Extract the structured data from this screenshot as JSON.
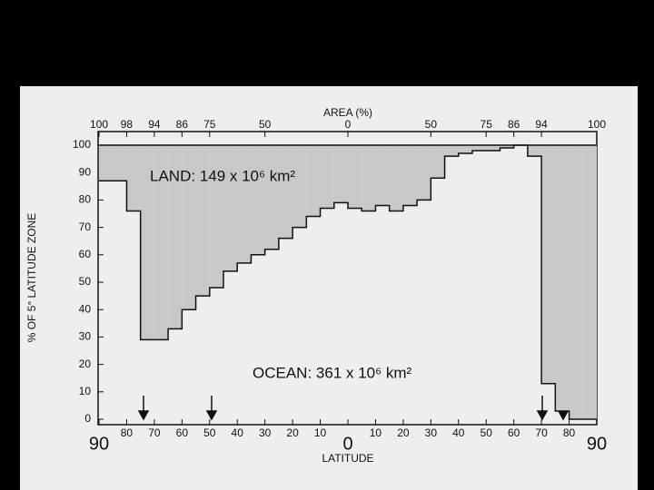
{
  "chart_data": {
    "type": "histogram",
    "title_top_axis": "AREA (%)",
    "xlabel": "LATITUDE",
    "ylabel": "% OF 5° LATITUDE ZONE",
    "annotations": [
      "LAND: 149 x 10⁶ km²",
      "OCEAN: 361 x 10⁶ km²"
    ],
    "bins": [
      90,
      85,
      80,
      75,
      70,
      65,
      60,
      55,
      50,
      45,
      40,
      35,
      30,
      25,
      20,
      15,
      10,
      5,
      0,
      -5,
      -10,
      -15,
      -20,
      -25,
      -30,
      -35,
      -40,
      -45,
      -50,
      -55,
      -60,
      -65,
      -70,
      -75,
      -80,
      -85,
      -90
    ],
    "values": [
      87,
      87,
      76,
      29,
      29,
      33,
      40,
      45,
      48,
      54,
      57,
      60,
      62,
      66,
      70,
      74,
      77,
      79,
      77,
      76,
      78,
      76,
      78,
      80,
      88,
      96,
      97,
      98,
      98,
      99,
      100,
      96,
      13,
      3,
      0,
      0
    ],
    "color": "#c8c8c8",
    "xlim": [
      90,
      -90
    ],
    "ylim": [
      0,
      100
    ],
    "yticks": [
      0,
      10,
      20,
      30,
      40,
      50,
      60,
      70,
      80,
      90,
      100
    ],
    "xticks": [
      90,
      80,
      70,
      60,
      50,
      40,
      30,
      20,
      10,
      0,
      {
        "value": -10,
        "label": "10"
      },
      {
        "value": -20,
        "label": "20"
      },
      {
        "value": -30,
        "label": "30"
      },
      {
        "value": -40,
        "label": "40"
      },
      {
        "value": -50,
        "label": "50"
      },
      {
        "value": -60,
        "label": "60"
      },
      {
        "value": -70,
        "label": "70"
      },
      {
        "value": -80,
        "label": "80"
      },
      {
        "value": -90,
        "label": "90"
      }
    ],
    "x2ticks": [
      {
        "value": 90,
        "label": "100"
      },
      {
        "value": 80,
        "label": "98"
      },
      {
        "value": 70,
        "label": "94"
      },
      {
        "value": 60,
        "label": "86"
      },
      {
        "value": 50,
        "label": "75"
      },
      {
        "value": 30,
        "label": "50"
      },
      {
        "value": 0,
        "label": "0"
      },
      {
        "value": -30,
        "label": "50"
      },
      {
        "value": -50,
        "label": "75"
      },
      {
        "value": -60,
        "label": "86"
      },
      {
        "value": -70,
        "label": "94"
      },
      {
        "value": -90,
        "label": "100"
      }
    ]
  }
}
